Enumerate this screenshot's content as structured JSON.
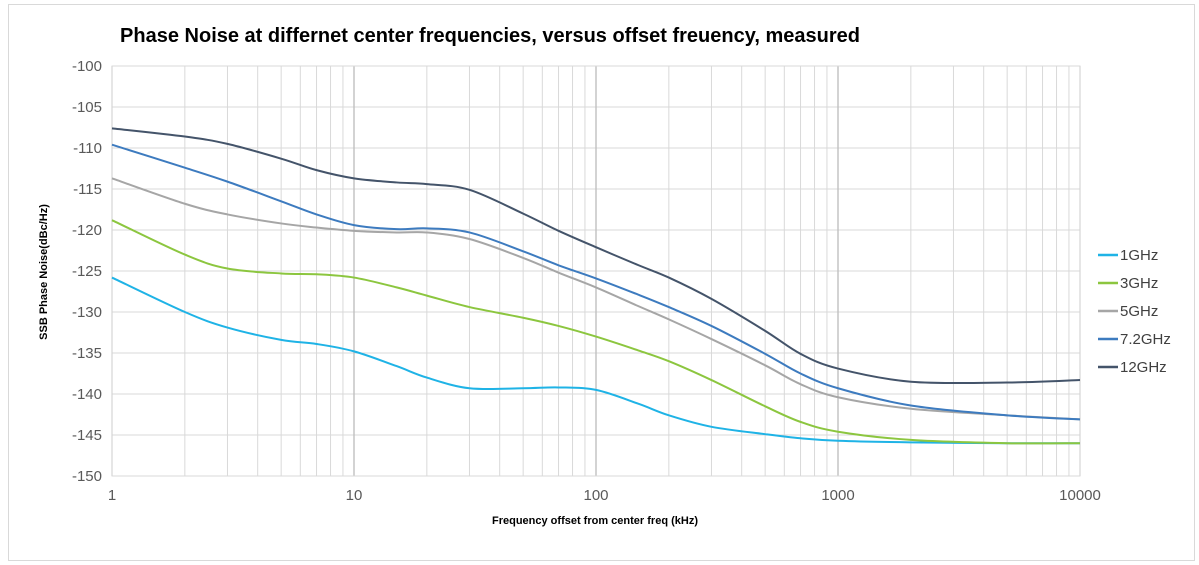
{
  "chart_data": {
    "type": "line",
    "title": "Phase Noise at differnet center frequencies, versus offset freuency, measured",
    "xlabel": "Frequency offset from center freq (kHz)",
    "ylabel": "SSB Phase Noise(dBc/Hz)",
    "x_scale": "log",
    "xlim": [
      1,
      10000
    ],
    "ylim": [
      -150,
      -100
    ],
    "x_ticks": [
      "1",
      "10",
      "100",
      "1000",
      "10000"
    ],
    "y_ticks": [
      "-100",
      "-105",
      "-110",
      "-115",
      "-120",
      "-125",
      "-130",
      "-135",
      "-140",
      "-145",
      "-150"
    ],
    "grid": true,
    "legend": "right",
    "series": [
      {
        "name": "1GHz",
        "color": "#1fb3e6",
        "x": [
          1,
          2,
          3,
          5,
          7,
          10,
          15,
          20,
          30,
          50,
          70,
          100,
          150,
          200,
          300,
          500,
          700,
          1000,
          2000,
          5000,
          10000
        ],
        "y": [
          -125.8,
          -130.0,
          -131.9,
          -133.4,
          -133.9,
          -134.8,
          -136.6,
          -138.0,
          -139.3,
          -139.3,
          -139.2,
          -139.5,
          -141.2,
          -142.6,
          -144.0,
          -144.9,
          -145.4,
          -145.7,
          -145.9,
          -146.0,
          -146.0
        ]
      },
      {
        "name": "3GHz",
        "color": "#8cc63f",
        "x": [
          1,
          2,
          3,
          5,
          7,
          10,
          15,
          20,
          30,
          50,
          70,
          100,
          150,
          200,
          300,
          500,
          700,
          1000,
          2000,
          5000,
          10000
        ],
        "y": [
          -118.8,
          -123.0,
          -124.7,
          -125.3,
          -125.4,
          -125.8,
          -127.0,
          -128.0,
          -129.4,
          -130.7,
          -131.7,
          -133.0,
          -134.7,
          -136.0,
          -138.3,
          -141.5,
          -143.4,
          -144.6,
          -145.6,
          -146.0,
          -146.0
        ]
      },
      {
        "name": "5GHz",
        "color": "#a6a6a6",
        "x": [
          1,
          2,
          3,
          5,
          7,
          10,
          15,
          20,
          30,
          50,
          70,
          100,
          150,
          200,
          300,
          500,
          700,
          1000,
          2000,
          5000,
          10000
        ],
        "y": [
          -113.7,
          -116.8,
          -118.1,
          -119.2,
          -119.7,
          -120.1,
          -120.3,
          -120.3,
          -121.1,
          -123.4,
          -125.2,
          -127.0,
          -129.3,
          -130.9,
          -133.3,
          -136.5,
          -138.8,
          -140.4,
          -141.8,
          -142.6,
          -143.1
        ]
      },
      {
        "name": "7.2GHz",
        "color": "#3d7bbf",
        "x": [
          1,
          2,
          3,
          5,
          7,
          10,
          15,
          20,
          30,
          50,
          70,
          100,
          150,
          200,
          300,
          500,
          700,
          1000,
          2000,
          5000,
          10000
        ],
        "y": [
          -109.6,
          -112.4,
          -114.1,
          -116.5,
          -118.1,
          -119.4,
          -119.9,
          -119.8,
          -120.3,
          -122.6,
          -124.3,
          -125.9,
          -127.9,
          -129.4,
          -131.7,
          -135.1,
          -137.5,
          -139.3,
          -141.4,
          -142.6,
          -143.1
        ]
      },
      {
        "name": "12GHz",
        "color": "#44546a",
        "x": [
          1,
          2,
          3,
          5,
          7,
          10,
          15,
          20,
          30,
          50,
          70,
          100,
          150,
          200,
          300,
          500,
          700,
          1000,
          2000,
          5000,
          10000
        ],
        "y": [
          -107.6,
          -108.6,
          -109.5,
          -111.3,
          -112.7,
          -113.7,
          -114.2,
          -114.4,
          -115.1,
          -118.0,
          -120.1,
          -122.1,
          -124.3,
          -125.8,
          -128.4,
          -132.3,
          -135.1,
          -136.9,
          -138.5,
          -138.6,
          -138.3
        ]
      }
    ]
  }
}
